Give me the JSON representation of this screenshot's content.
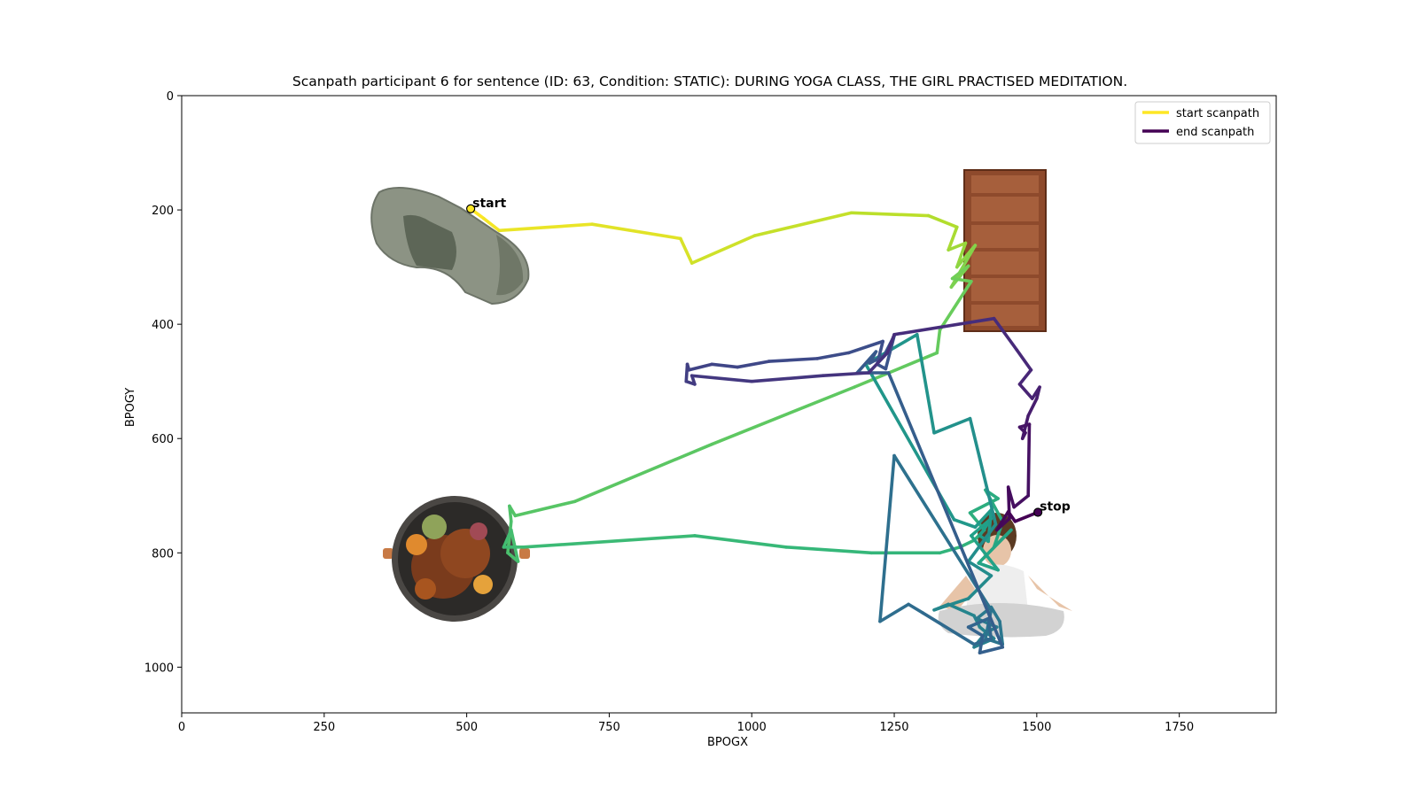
{
  "chart_data": {
    "type": "line",
    "title": "Scanpath participant 6 for sentence (ID: 63, Condition: STATIC):  DURING YOGA CLASS, THE GIRL PRACTISED MEDITATION.",
    "xlabel": "BPOGX",
    "ylabel": "BPOGY",
    "xlim": [
      0,
      1920
    ],
    "ylim": [
      1080,
      0
    ],
    "y_inverted": true,
    "xticks": [
      "0",
      "250",
      "500",
      "750",
      "1000",
      "1250",
      "1500",
      "1750"
    ],
    "yticks": [
      "0",
      "200",
      "400",
      "600",
      "800",
      "1000"
    ],
    "grid": false,
    "legend_position": "top-right",
    "legend": [
      {
        "label": "start scanpath",
        "color": "#fde725"
      },
      {
        "label": "end scanpath",
        "color": "#440154"
      }
    ],
    "annotations": [
      {
        "text": "start",
        "x": 507,
        "y": 198
      },
      {
        "text": "stop",
        "x": 1502,
        "y": 729
      }
    ],
    "stimuli": [
      {
        "name": "mitten-image",
        "x": 480,
        "y": 270
      },
      {
        "name": "bookshelf-image",
        "x": 1445,
        "y": 270
      },
      {
        "name": "grill-image",
        "x": 477,
        "y": 810
      },
      {
        "name": "yoga-girl-image",
        "x": 1430,
        "y": 805
      }
    ],
    "colormap": "viridis",
    "scanpath": [
      [
        507,
        198
      ],
      [
        530,
        215
      ],
      [
        557,
        236
      ],
      [
        720,
        225
      ],
      [
        875,
        250
      ],
      [
        895,
        293
      ],
      [
        1005,
        245
      ],
      [
        1175,
        205
      ],
      [
        1310,
        210
      ],
      [
        1360,
        230
      ],
      [
        1345,
        270
      ],
      [
        1375,
        258
      ],
      [
        1360,
        300
      ],
      [
        1392,
        262
      ],
      [
        1350,
        335
      ],
      [
        1380,
        298
      ],
      [
        1352,
        320
      ],
      [
        1385,
        325
      ],
      [
        1330,
        410
      ],
      [
        1325,
        450
      ],
      [
        1180,
        510
      ],
      [
        930,
        610
      ],
      [
        690,
        710
      ],
      [
        585,
        735
      ],
      [
        575,
        718
      ],
      [
        578,
        745
      ],
      [
        572,
        800
      ],
      [
        590,
        815
      ],
      [
        578,
        760
      ],
      [
        565,
        790
      ],
      [
        600,
        790
      ],
      [
        900,
        770
      ],
      [
        1060,
        790
      ],
      [
        1210,
        800
      ],
      [
        1330,
        800
      ],
      [
        1365,
        790
      ],
      [
        1390,
        778
      ],
      [
        1408,
        760
      ],
      [
        1383,
        730
      ],
      [
        1432,
        705
      ],
      [
        1410,
        690
      ],
      [
        1440,
        745
      ],
      [
        1425,
        790
      ],
      [
        1455,
        760
      ],
      [
        1398,
        818
      ],
      [
        1432,
        830
      ],
      [
        1385,
        770
      ],
      [
        1420,
        740
      ],
      [
        1400,
        770
      ],
      [
        1415,
        780
      ],
      [
        1420,
        725
      ],
      [
        1392,
        755
      ],
      [
        1355,
        742
      ],
      [
        1200,
        470
      ],
      [
        1290,
        418
      ],
      [
        1320,
        590
      ],
      [
        1383,
        565
      ],
      [
        1428,
        750
      ],
      [
        1380,
        815
      ],
      [
        1420,
        840
      ],
      [
        1380,
        880
      ],
      [
        1320,
        900
      ],
      [
        1345,
        890
      ],
      [
        1390,
        910
      ],
      [
        1400,
        930
      ],
      [
        1425,
        950
      ],
      [
        1390,
        965
      ],
      [
        1410,
        940
      ],
      [
        1430,
        930
      ],
      [
        1395,
        915
      ],
      [
        1420,
        895
      ],
      [
        1435,
        920
      ],
      [
        1440,
        960
      ],
      [
        1410,
        950
      ],
      [
        1420,
        900
      ],
      [
        1250,
        630
      ],
      [
        1225,
        920
      ],
      [
        1275,
        890
      ],
      [
        1300,
        905
      ],
      [
        1390,
        960
      ],
      [
        1420,
        950
      ],
      [
        1415,
        915
      ],
      [
        1380,
        930
      ],
      [
        1405,
        945
      ],
      [
        1400,
        975
      ],
      [
        1440,
        965
      ],
      [
        1240,
        485
      ],
      [
        1185,
        485
      ],
      [
        1218,
        448
      ],
      [
        1207,
        468
      ],
      [
        1232,
        455
      ],
      [
        1250,
        420
      ],
      [
        1235,
        478
      ],
      [
        1220,
        470
      ],
      [
        1230,
        430
      ],
      [
        1170,
        450
      ],
      [
        1115,
        460
      ],
      [
        1030,
        465
      ],
      [
        975,
        475
      ],
      [
        930,
        470
      ],
      [
        890,
        480
      ],
      [
        887,
        470
      ],
      [
        885,
        500
      ],
      [
        900,
        505
      ],
      [
        895,
        490
      ],
      [
        1000,
        500
      ],
      [
        1125,
        490
      ],
      [
        1205,
        485
      ],
      [
        1238,
        450
      ],
      [
        1250,
        418
      ],
      [
        1425,
        390
      ],
      [
        1465,
        445
      ],
      [
        1490,
        480
      ],
      [
        1470,
        505
      ],
      [
        1492,
        530
      ],
      [
        1505,
        510
      ],
      [
        1500,
        530
      ],
      [
        1485,
        560
      ],
      [
        1475,
        600
      ],
      [
        1480,
        590
      ],
      [
        1470,
        580
      ],
      [
        1487,
        575
      ],
      [
        1485,
        700
      ],
      [
        1460,
        720
      ],
      [
        1450,
        685
      ],
      [
        1452,
        740
      ],
      [
        1430,
        760
      ],
      [
        1450,
        728
      ],
      [
        1462,
        745
      ],
      [
        1502,
        729
      ]
    ]
  }
}
